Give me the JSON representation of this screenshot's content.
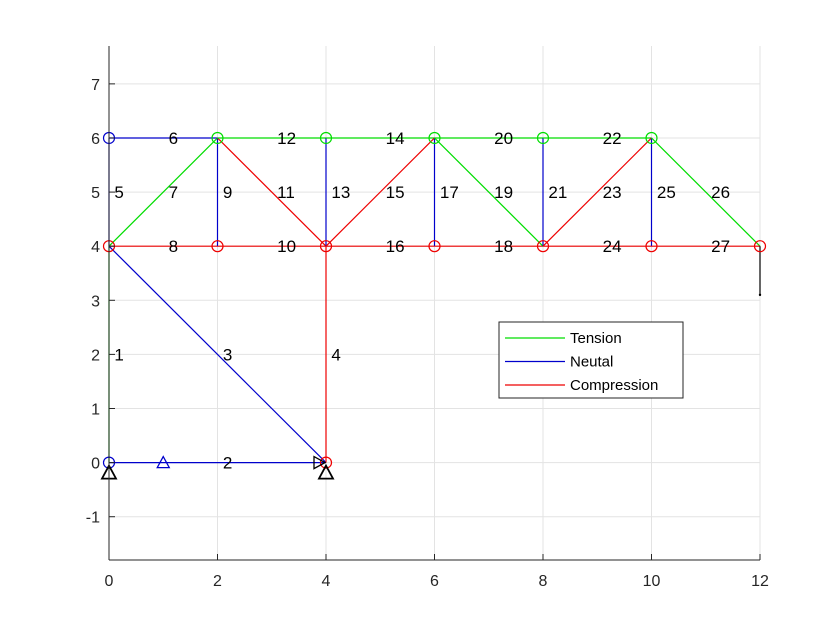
{
  "chart_data": {
    "type": "truss-diagram",
    "title": "",
    "xlabel": "",
    "ylabel": "",
    "xlim": [
      0,
      12
    ],
    "ylim": [
      -1.8,
      7.7
    ],
    "xticks": [
      0,
      2,
      4,
      6,
      8,
      10,
      12
    ],
    "yticks": [
      -1,
      0,
      1,
      2,
      3,
      4,
      5,
      6,
      7
    ],
    "grid": true,
    "legend_position": "right-middle",
    "legend": [
      {
        "key": "tension",
        "label": "Tension",
        "color": "#00dd00"
      },
      {
        "key": "neutral",
        "label": "Neutal",
        "color": "#0000cc"
      },
      {
        "key": "compression",
        "label": "Compression",
        "color": "#ee0000"
      }
    ],
    "nodes": [
      {
        "x": 0,
        "y": 0,
        "state": "neutral"
      },
      {
        "x": 4,
        "y": 0,
        "state": "compression"
      },
      {
        "x": 0,
        "y": 4,
        "state": "compression"
      },
      {
        "x": 0,
        "y": 6,
        "state": "neutral"
      },
      {
        "x": 2,
        "y": 4,
        "state": "compression"
      },
      {
        "x": 2,
        "y": 6,
        "state": "tension"
      },
      {
        "x": 4,
        "y": 4,
        "state": "compression"
      },
      {
        "x": 4,
        "y": 6,
        "state": "tension"
      },
      {
        "x": 6,
        "y": 4,
        "state": "compression"
      },
      {
        "x": 6,
        "y": 6,
        "state": "tension"
      },
      {
        "x": 8,
        "y": 4,
        "state": "compression"
      },
      {
        "x": 8,
        "y": 6,
        "state": "tension"
      },
      {
        "x": 10,
        "y": 4,
        "state": "compression"
      },
      {
        "x": 10,
        "y": 6,
        "state": "tension"
      },
      {
        "x": 12,
        "y": 4,
        "state": "compression"
      }
    ],
    "members": [
      {
        "label": "1",
        "x1": 0,
        "y1": 0,
        "x2": 0,
        "y2": 4,
        "state": "tension",
        "lx": 0.1,
        "ly": 2
      },
      {
        "label": "2",
        "x1": 0,
        "y1": 0,
        "x2": 4,
        "y2": 0,
        "state": "neutral",
        "lx": 2.1,
        "ly": 0
      },
      {
        "label": "3",
        "x1": 0,
        "y1": 4,
        "x2": 4,
        "y2": 0,
        "state": "neutral",
        "lx": 2.1,
        "ly": 2
      },
      {
        "label": "4",
        "x1": 4,
        "y1": 0,
        "x2": 4,
        "y2": 4,
        "state": "compression",
        "lx": 4.1,
        "ly": 2
      },
      {
        "label": "5",
        "x1": 0,
        "y1": 4,
        "x2": 0,
        "y2": 6,
        "state": "neutral",
        "lx": 0.1,
        "ly": 5
      },
      {
        "label": "6",
        "x1": 0,
        "y1": 6,
        "x2": 2,
        "y2": 6,
        "state": "neutral",
        "lx": 1.1,
        "ly": 6
      },
      {
        "label": "7",
        "x1": 0,
        "y1": 4,
        "x2": 2,
        "y2": 6,
        "state": "tension",
        "lx": 1.1,
        "ly": 5
      },
      {
        "label": "8",
        "x1": 0,
        "y1": 4,
        "x2": 2,
        "y2": 4,
        "state": "compression",
        "lx": 1.1,
        "ly": 4
      },
      {
        "label": "9",
        "x1": 2,
        "y1": 4,
        "x2": 2,
        "y2": 6,
        "state": "neutral",
        "lx": 2.1,
        "ly": 5
      },
      {
        "label": "10",
        "x1": 2,
        "y1": 4,
        "x2": 4,
        "y2": 4,
        "state": "compression",
        "lx": 3.1,
        "ly": 4
      },
      {
        "label": "11",
        "x1": 2,
        "y1": 6,
        "x2": 4,
        "y2": 4,
        "state": "compression",
        "lx": 3.1,
        "ly": 5
      },
      {
        "label": "12",
        "x1": 2,
        "y1": 6,
        "x2": 4,
        "y2": 6,
        "state": "tension",
        "lx": 3.1,
        "ly": 6
      },
      {
        "label": "13",
        "x1": 4,
        "y1": 4,
        "x2": 4,
        "y2": 6,
        "state": "neutral",
        "lx": 4.1,
        "ly": 5
      },
      {
        "label": "14",
        "x1": 4,
        "y1": 6,
        "x2": 6,
        "y2": 6,
        "state": "tension",
        "lx": 5.1,
        "ly": 6
      },
      {
        "label": "15",
        "x1": 4,
        "y1": 4,
        "x2": 6,
        "y2": 6,
        "state": "compression",
        "lx": 5.1,
        "ly": 5
      },
      {
        "label": "16",
        "x1": 4,
        "y1": 4,
        "x2": 6,
        "y2": 4,
        "state": "compression",
        "lx": 5.1,
        "ly": 4
      },
      {
        "label": "17",
        "x1": 6,
        "y1": 4,
        "x2": 6,
        "y2": 6,
        "state": "neutral",
        "lx": 6.1,
        "ly": 5
      },
      {
        "label": "18",
        "x1": 6,
        "y1": 4,
        "x2": 8,
        "y2": 4,
        "state": "compression",
        "lx": 7.1,
        "ly": 4
      },
      {
        "label": "19",
        "x1": 6,
        "y1": 6,
        "x2": 8,
        "y2": 4,
        "state": "tension",
        "lx": 7.1,
        "ly": 5
      },
      {
        "label": "20",
        "x1": 6,
        "y1": 6,
        "x2": 8,
        "y2": 6,
        "state": "tension",
        "lx": 7.1,
        "ly": 6
      },
      {
        "label": "21",
        "x1": 8,
        "y1": 4,
        "x2": 8,
        "y2": 6,
        "state": "neutral",
        "lx": 8.1,
        "ly": 5
      },
      {
        "label": "22",
        "x1": 8,
        "y1": 6,
        "x2": 10,
        "y2": 6,
        "state": "tension",
        "lx": 9.1,
        "ly": 6
      },
      {
        "label": "23",
        "x1": 8,
        "y1": 4,
        "x2": 10,
        "y2": 6,
        "state": "compression",
        "lx": 9.1,
        "ly": 5
      },
      {
        "label": "24",
        "x1": 8,
        "y1": 4,
        "x2": 10,
        "y2": 4,
        "state": "compression",
        "lx": 9.1,
        "ly": 4
      },
      {
        "label": "25",
        "x1": 10,
        "y1": 4,
        "x2": 10,
        "y2": 6,
        "state": "neutral",
        "lx": 10.1,
        "ly": 5
      },
      {
        "label": "26",
        "x1": 10,
        "y1": 6,
        "x2": 12,
        "y2": 4,
        "state": "tension",
        "lx": 11.1,
        "ly": 5
      },
      {
        "label": "27",
        "x1": 10,
        "y1": 4,
        "x2": 12,
        "y2": 4,
        "state": "compression",
        "lx": 11.1,
        "ly": 4
      }
    ],
    "supports": [
      {
        "x": 0,
        "y": 0,
        "kind": "pin"
      },
      {
        "x": 4,
        "y": 0,
        "kind": "pin"
      }
    ],
    "markers": [
      {
        "x": 1,
        "y": 0,
        "shape": "triangle-up",
        "color": "#0000cc"
      },
      {
        "x": 4,
        "y": 0,
        "shape": "triangle-right",
        "color": "#000000"
      }
    ],
    "load": {
      "x": 12,
      "y1": 4,
      "y2": 3.1,
      "color": "#000000"
    }
  }
}
